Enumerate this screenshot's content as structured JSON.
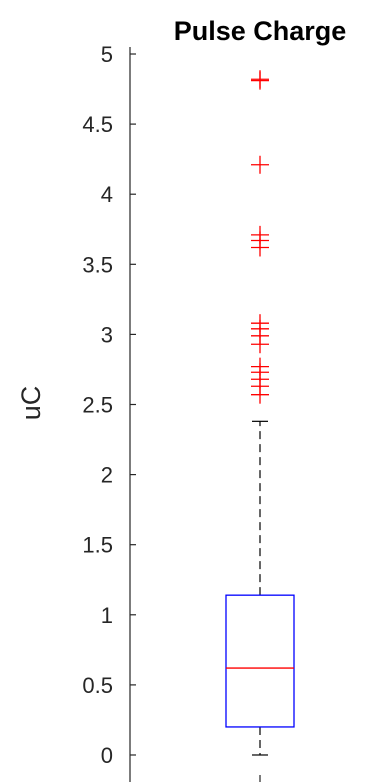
{
  "chart_data": {
    "type": "boxplot",
    "title": "Pulse Charge",
    "xlabel": "",
    "ylabel": "uC",
    "ylim": [
      -0.05,
      5.05
    ],
    "yticks": [
      0,
      0.5,
      1,
      1.5,
      2,
      2.5,
      3,
      3.5,
      4,
      4.5,
      5
    ],
    "ytick_labels": [
      "0",
      "0.5",
      "1",
      "1.5",
      "2",
      "2.5",
      "3",
      "3.5",
      "4",
      "4.5",
      "5"
    ],
    "box": {
      "q1": 0.2,
      "median": 0.62,
      "q3": 1.14,
      "whisker_low": 0.0,
      "whisker_high": 2.38
    },
    "outliers": [
      2.57,
      2.63,
      2.68,
      2.73,
      2.77,
      2.93,
      2.99,
      3.04,
      3.08,
      3.62,
      3.67,
      3.71,
      4.21,
      4.81,
      4.82
    ],
    "colors": {
      "box": "#0000ff",
      "median": "#ff0000",
      "outlier": "#ff0000",
      "whisker": "#000000",
      "axis": "#262626"
    },
    "grid": false
  }
}
